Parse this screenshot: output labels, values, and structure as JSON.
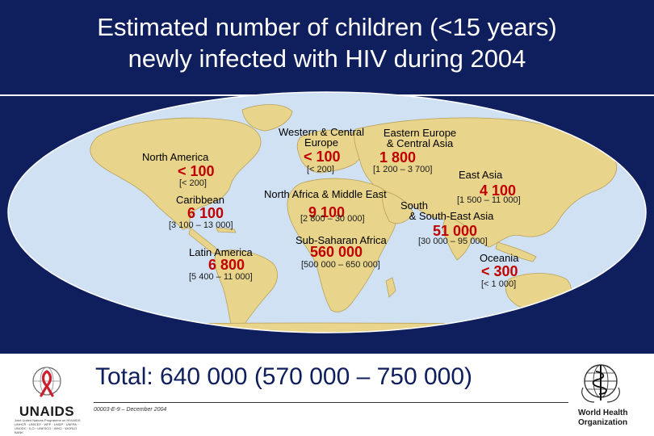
{
  "title": {
    "line1": "Estimated number of children (<15 years)",
    "line2": "newly infected with HIV during 2004"
  },
  "regions": {
    "north_america": {
      "name": "North America",
      "value": "< 100",
      "range": "[< 200]"
    },
    "caribbean": {
      "name": "Caribbean",
      "value": "6 100",
      "range": "[3 100 – 13 000]"
    },
    "latin_america": {
      "name": "Latin America",
      "value": "6 800",
      "range": "[5 400 – 11 000]"
    },
    "western_central_europe": {
      "name_line1": "Western & Central",
      "name_line2": "Europe",
      "value": "< 100",
      "range": "[< 200]"
    },
    "eastern_europe_central_asia": {
      "name_line1": "Eastern Europe",
      "name_line2": "& Central Asia",
      "value": "1 800",
      "range": "[1 200 – 3 700]"
    },
    "north_africa_middle_east": {
      "name": "North Africa & Middle East",
      "value": "9 100",
      "range": "[2 800 – 30 000]"
    },
    "sub_saharan_africa": {
      "name": "Sub-Saharan Africa",
      "value": "560 000",
      "range": "[500 000 – 650 000]"
    },
    "east_asia": {
      "name": "East Asia",
      "value": "4 100",
      "range": "[1 500 – 11 000]"
    },
    "south_southeast_asia": {
      "name_line1": "South",
      "name_line2": "& South-East Asia",
      "value": "51 000",
      "range": "[30 000 – 95 000]"
    },
    "oceania": {
      "name": "Oceania",
      "value": "< 300",
      "range": "[< 1 000]"
    }
  },
  "footer": {
    "total": "Total: 640 000 (570 000 – 750 000)",
    "code": "00003-E-9 – December 2004",
    "unaids_wordmark": "UNAIDS",
    "unaids_tagline": "Joint United Nations Programme on HIV/AIDS",
    "unaids_agencies": "UNHCR · UNICEF · WFP · UNDP · UNFPA · UNODC · ILO · UNESCO · WHO · WORLD BANK",
    "who_line1": "World Health",
    "who_line2": "Organization"
  },
  "colors": {
    "background": "#0f1e5c",
    "ocean": "#cfe1f2",
    "land": "#e8d48a",
    "value_red": "#c00000",
    "total_text": "#0f1e5c"
  },
  "icons": [
    "world-map",
    "unaids-ribbon-logo",
    "who-emblem"
  ]
}
